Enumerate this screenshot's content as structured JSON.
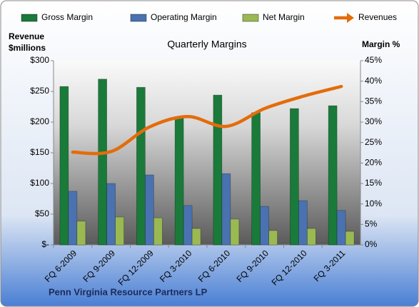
{
  "chart_data": {
    "type": "bar-line",
    "title": "Quarterly Margins",
    "ylabel": [
      "Revenue",
      "$millions"
    ],
    "y2label": "Margin %",
    "source": "Penn Virginia Resource Partners LP",
    "categories": [
      "FQ 6-2009",
      "FQ 9-2009",
      "FQ 12-2009",
      "FQ 3-2010",
      "FQ 6-2010",
      "FQ 9-2010",
      "FQ 12-2010",
      "FQ 3-2011"
    ],
    "series": [
      {
        "name": "Gross Margin",
        "color": "#1a7a3a",
        "kind": "bar",
        "axis": "y2",
        "values": [
          38.7,
          40.5,
          38.5,
          30.9,
          36.6,
          32.3,
          33.3,
          34.0
        ]
      },
      {
        "name": "Operating Margin",
        "color": "#4a72b0",
        "kind": "bar",
        "axis": "y2",
        "values": [
          13.1,
          15.0,
          17.1,
          9.6,
          17.4,
          9.4,
          10.8,
          8.4
        ]
      },
      {
        "name": "Net Margin",
        "color": "#9bb953",
        "kind": "bar",
        "axis": "y2",
        "values": [
          5.8,
          6.8,
          6.6,
          4.0,
          6.3,
          3.5,
          4.0,
          3.3
        ]
      },
      {
        "name": "Revenues",
        "color": "#e46c0a",
        "kind": "line",
        "axis": "y",
        "values": [
          151,
          152,
          192,
          209,
          193,
          222,
          242,
          258
        ]
      }
    ],
    "ylim": [
      0,
      300
    ],
    "yticks": [
      {
        "value": 0,
        "label": "$-"
      },
      {
        "value": 50,
        "label": "$50"
      },
      {
        "value": 100,
        "label": "$100"
      },
      {
        "value": 150,
        "label": "$150"
      },
      {
        "value": 200,
        "label": "$200"
      },
      {
        "value": 250,
        "label": "$250"
      },
      {
        "value": 300,
        "label": "$300"
      }
    ],
    "y2lim": [
      0,
      45
    ],
    "y2ticks": [
      {
        "value": 0,
        "label": "0%"
      },
      {
        "value": 5,
        "label": "5%"
      },
      {
        "value": 10,
        "label": "10%"
      },
      {
        "value": 15,
        "label": "15%"
      },
      {
        "value": 20,
        "label": "20%"
      },
      {
        "value": 25,
        "label": "25%"
      },
      {
        "value": 30,
        "label": "30%"
      },
      {
        "value": 35,
        "label": "35%"
      },
      {
        "value": 40,
        "label": "40%"
      },
      {
        "value": 45,
        "label": "45%"
      }
    ],
    "grid": false,
    "legend": "top"
  }
}
